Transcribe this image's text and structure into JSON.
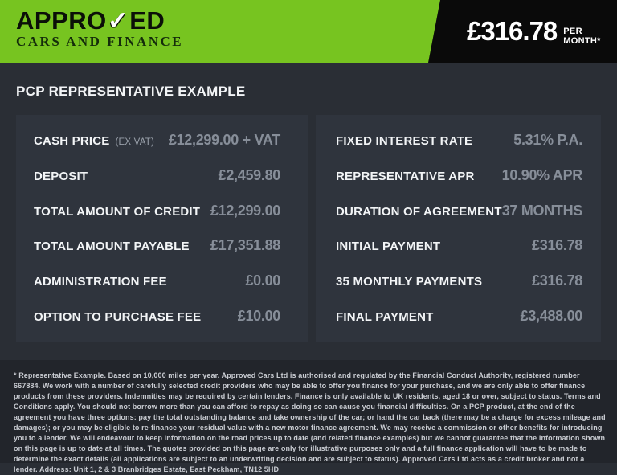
{
  "header": {
    "logo": {
      "name_pre": "APPRO",
      "check_glyph": "✓",
      "name_post": "ED",
      "tagline": "CARS AND FINANCE"
    },
    "price": "£316.78",
    "price_suffix": "PER MONTH*"
  },
  "main": {
    "heading": "PCP REPRESENTATIVE EXAMPLE",
    "left_rows": [
      {
        "label": "CASH PRICE",
        "note": "(EX VAT)",
        "value": "£12,299.00 + VAT"
      },
      {
        "label": "DEPOSIT",
        "value": "£2,459.80"
      },
      {
        "label": "TOTAL AMOUNT OF CREDIT",
        "value": "£12,299.00"
      },
      {
        "label": "TOTAL AMOUNT PAYABLE",
        "value": "£17,351.88"
      },
      {
        "label": "ADMINISTRATION FEE",
        "value": "£0.00"
      },
      {
        "label": "OPTION TO PURCHASE FEE",
        "value": "£10.00"
      }
    ],
    "right_rows": [
      {
        "label": "FIXED INTEREST RATE",
        "value": "5.31% P.A."
      },
      {
        "label": "REPRESENTATIVE APR",
        "value": "10.90% APR"
      },
      {
        "label": "DURATION OF AGREEMENT",
        "value": "37 MONTHS"
      },
      {
        "label": "INITIAL PAYMENT",
        "value": "£316.78"
      },
      {
        "label": "35 MONTHLY PAYMENTS",
        "value": "£316.78"
      },
      {
        "label": "FINAL PAYMENT",
        "value": "£3,488.00"
      }
    ]
  },
  "footer": {
    "disclaimer": "* Representative Example. Based on 10,000 miles per year. Approved Cars Ltd is authorised and regulated by the Financial Conduct Authority, registered number 667884. We work with a number of carefully selected credit providers who may be able to offer you finance for your purchase, and we are only able to offer finance products from these providers. Indemnities may be required by certain lenders. Finance is only available to UK residents, aged 18 or over, subject to status. Terms and Conditions apply. You should not borrow more than you can afford to repay as doing so can cause you financial difficulties. On a PCP product, at the end of the agreement you have three options: pay the total outstanding balance and take ownership of the car; or hand the car back (there may be a charge for excess mileage and damages); or you may be eligible to re-finance your residual value with a new motor finance agreement. We may receive a commission or other benefits for introducing you to a lender. We will endeavour to keep information on the road prices up to date (and related finance examples) but we cannot guarantee that the information shown on this page is up to date at all times. The quotes provided on this page are only for illustrative purposes only and a full finance application will have to be made to determine the exact details (all applications are subject to an underwriting decision and are subject to status). Approved Cars Ltd acts as a credit broker and not a lender. Address: Unit 1, 2 & 3 Branbridges Estate, East Peckham, TN12 5HD"
  },
  "colors": {
    "brand_green": "#77c420",
    "flag_black": "#0a0a0a",
    "page_bg": "#2a2e35",
    "panel_bg": "#2f343d",
    "footer_bg": "#22252b",
    "label_white": "#f2f4f6",
    "value_gray": "#878e99"
  }
}
